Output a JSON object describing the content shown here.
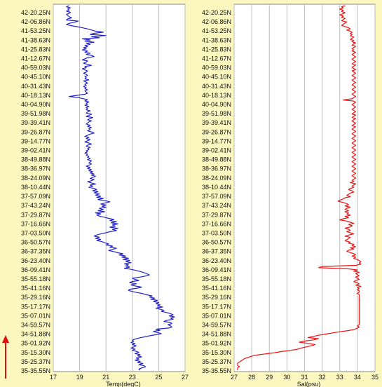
{
  "chart_data": [
    {
      "type": "line",
      "title": "",
      "xlabel": "Temp(degC)",
      "ylabel": "",
      "xlim": [
        17,
        27
      ],
      "xticks": [
        17,
        19,
        21,
        23,
        25,
        27
      ],
      "grid": true,
      "color": "#2222cc",
      "y_labels": [
        "42-20.25N",
        "42-06.86N",
        "41-53.25N",
        "41-38.63N",
        "41-25.83N",
        "41-12.67N",
        "40-59.03N",
        "40-45.10N",
        "40-31.43N",
        "40-18.13N",
        "40-04.90N",
        "39-51.98N",
        "39-39.41N",
        "39-26.87N",
        "39-14.77N",
        "39-02.41N",
        "38-49.88N",
        "38-36.97N",
        "38-24.09N",
        "38-10.44N",
        "37-57.09N",
        "37-43.24N",
        "37-29.87N",
        "37-16.66N",
        "37-03.50N",
        "36-50.57N",
        "36-37.35N",
        "36-23.40N",
        "36-09.41N",
        "35-55.18N",
        "35-41.16N",
        "35-29.16N",
        "35-17.17N",
        "35-07.01N",
        "34-59.57N",
        "34-51.88N",
        "35-01.92N",
        "35-15.30N",
        "35-25.37N",
        "35-35.55N"
      ],
      "series": [
        {
          "values": [
            18.2,
            18.0,
            18.3,
            18.1,
            18.2,
            18.0,
            18.3,
            18.2,
            18.0,
            18.1,
            18.2,
            18.4,
            18.1,
            18.0,
            18.9,
            18.6,
            18.2,
            18.0,
            18.3,
            18.8,
            19.2,
            19.6,
            19.9,
            20.2,
            20.8,
            20.1,
            19.8,
            21.0,
            19.9,
            20.5,
            19.2,
            19.8,
            19.4,
            20.1,
            19.5,
            19.8,
            19.4,
            19.6,
            19.3,
            19.5,
            19.2,
            19.6,
            19.4,
            19.8,
            19.5,
            19.9,
            20.1,
            19.6,
            19.4,
            19.2,
            19.6,
            19.5,
            19.3,
            19.6,
            19.9,
            19.4,
            19.5,
            19.2,
            19.4,
            19.6,
            19.5,
            19.3,
            19.5,
            19.6,
            19.4,
            19.5,
            19.4,
            19.7,
            19.3,
            19.5,
            19.6,
            19.4,
            19.5,
            19.3,
            19.5,
            19.4,
            19.6,
            19.4,
            19.5,
            19.6,
            19.4,
            18.8,
            18.2,
            18.9,
            19.3,
            19.6,
            19.4,
            19.7,
            19.5,
            19.6,
            19.4,
            19.7,
            19.5,
            19.6,
            19.5,
            19.8,
            19.6,
            19.5,
            19.9,
            19.7,
            19.5,
            20.0,
            19.8,
            19.6,
            19.9,
            19.7,
            19.6,
            19.5,
            19.8,
            19.6,
            19.9,
            19.7,
            19.8,
            19.6,
            19.9,
            20.1,
            19.8,
            19.6,
            19.4,
            19.7,
            19.5,
            19.8,
            19.6,
            19.4,
            19.7,
            19.9,
            19.6,
            19.5,
            19.8,
            19.6,
            19.7,
            19.5,
            19.6,
            19.4,
            19.6,
            19.5,
            19.7,
            19.6,
            19.8,
            19.6,
            19.9,
            19.8,
            19.7,
            19.9,
            19.7,
            19.5,
            19.8,
            19.6,
            19.9,
            19.7,
            20.0,
            19.8,
            20.1,
            19.9,
            20.2,
            20.0,
            19.8,
            20.1,
            19.9,
            19.6,
            19.9,
            20.2,
            19.8,
            20.0,
            19.7,
            20.1,
            20.3,
            20.0,
            20.4,
            20.1,
            20.5,
            20.2,
            20.6,
            20.3,
            20.8,
            20.4,
            20.9,
            21.3,
            21.0,
            20.6,
            21.0,
            20.7,
            21.0,
            20.5,
            20.8,
            20.4,
            20.9,
            20.2,
            20.6,
            20.3,
            20.5,
            20.9,
            21.2,
            21.6,
            21.3,
            21.8,
            21.4,
            21.9,
            21.5,
            21.7,
            21.3,
            21.9,
            21.5,
            21.8,
            21.3,
            21.0,
            20.6,
            20.3,
            20.1,
            20.5,
            20.2,
            20.6,
            20.3,
            20.7,
            20.9,
            21.2,
            21.0,
            21.5,
            21.3,
            21.8,
            21.5,
            21.2,
            21.6,
            21.9,
            22.3,
            22.0,
            22.5,
            22.2,
            22.7,
            22.3,
            22.8,
            22.5,
            22.9,
            22.4,
            22.7,
            22.5,
            22.8,
            22.4,
            22.9,
            23.3,
            23.6,
            23.9,
            24.1,
            24.3,
            24.0,
            23.6,
            23.0,
            23.2,
            23.5,
            23.0,
            22.8,
            23.3,
            22.9,
            23.2,
            23.7,
            23.4,
            22.8,
            22.7,
            23.0,
            23.4,
            23.8,
            24.1,
            24.5,
            24.3,
            24.7,
            24.4,
            24.9,
            24.6,
            25.0,
            24.8,
            25.1,
            24.9,
            25.3,
            24.8,
            25.1,
            25.4,
            25.2,
            25.6,
            25.9,
            26.1,
            25.8,
            26.2,
            25.9,
            26.1,
            25.6,
            25.4,
            25.9,
            26.0,
            25.7,
            25.9,
            26.0,
            25.8,
            24.8,
            25.1,
            24.6,
            24.9,
            25.2,
            24.8,
            24.3,
            23.9,
            23.5,
            23.2,
            23.0,
            23.1,
            22.9,
            23.2,
            23.0,
            23.3,
            23.1,
            22.9,
            23.2,
            23.0,
            23.3,
            23.5,
            23.2,
            23.6,
            23.4,
            23.7,
            23.3,
            23.5,
            23.2,
            23.6,
            23.4,
            23.8,
            23.5,
            23.9,
            24.0,
            23.7,
            23.5,
            23.6
          ]
        }
      ]
    },
    {
      "type": "line",
      "title": "",
      "xlabel": "Sal(psu)",
      "ylabel": "",
      "xlim": [
        27,
        35
      ],
      "xticks": [
        27,
        28,
        29,
        30,
        31,
        32,
        33,
        34,
        35
      ],
      "grid": true,
      "color": "#ee1111",
      "y_labels": [
        "42-20.25N",
        "42-06.86N",
        "41-53.25N",
        "41-38.63N",
        "41-25.83N",
        "41-12.67N",
        "40-59.03N",
        "40-45.10N",
        "40-31.43N",
        "40-18.13N",
        "40-04.90N",
        "39-51.98N",
        "39-39.41N",
        "39-26.87N",
        "39-14.77N",
        "39-02.41N",
        "38-49.88N",
        "38-36.97N",
        "38-24.09N",
        "38-10.44N",
        "37-57.09N",
        "37-43.24N",
        "37-29.87N",
        "37-16.66N",
        "37-03.50N",
        "36-50.57N",
        "36-37.35N",
        "36-23.40N",
        "36-09.41N",
        "35-55.18N",
        "35-41.16N",
        "35-29.16N",
        "35-17.17N",
        "35-07.01N",
        "34-59.57N",
        "34-51.88N",
        "35-01.92N",
        "35-15.30N",
        "35-25.37N",
        "35-35.55N"
      ],
      "series": [
        {
          "values": [
            33.3,
            33.1,
            33.2,
            33.0,
            33.2,
            33.1,
            33.3,
            33.2,
            33.0,
            33.2,
            33.1,
            33.3,
            33.2,
            33.1,
            33.4,
            33.3,
            33.2,
            33.1,
            33.3,
            33.5,
            33.6,
            33.4,
            33.6,
            33.7,
            33.6,
            33.7,
            33.6,
            33.8,
            33.7,
            33.6,
            33.8,
            33.7,
            33.9,
            33.8,
            33.7,
            33.9,
            33.8,
            33.7,
            33.8,
            33.7,
            33.9,
            33.8,
            33.7,
            33.8,
            33.9,
            33.8,
            33.7,
            33.8,
            33.9,
            33.8,
            33.7,
            33.9,
            33.8,
            33.7,
            33.8,
            33.9,
            33.7,
            33.8,
            33.9,
            33.8,
            33.7,
            33.8,
            33.9,
            33.8,
            33.7,
            33.8,
            33.9,
            33.8,
            33.7,
            33.8,
            33.9,
            33.8,
            33.7,
            33.8,
            33.9,
            33.8,
            33.7,
            33.8,
            33.9,
            33.8,
            33.7,
            33.2,
            33.8,
            33.9,
            33.8,
            33.7,
            33.8,
            33.9,
            33.8,
            33.7,
            33.8,
            33.9,
            33.8,
            33.7,
            33.9,
            33.8,
            33.7,
            33.9,
            33.8,
            33.7,
            33.8,
            33.9,
            33.8,
            33.7,
            33.9,
            33.8,
            33.7,
            33.8,
            33.9,
            33.8,
            33.7,
            33.8,
            33.9,
            33.8,
            33.7,
            33.8,
            33.9,
            33.8,
            33.7,
            33.8,
            33.9,
            33.8,
            33.7,
            33.8,
            33.9,
            33.8,
            33.7,
            33.8,
            33.9,
            33.8,
            33.7,
            33.8,
            33.9,
            33.8,
            33.7,
            33.8,
            33.9,
            33.8,
            33.7,
            33.8,
            33.9,
            33.8,
            33.7,
            33.8,
            33.9,
            33.8,
            33.7,
            33.8,
            33.9,
            33.8,
            33.7,
            33.8,
            33.6,
            33.9,
            33.8,
            33.7,
            33.8,
            33.6,
            33.5,
            33.7,
            33.8,
            33.6,
            33.5,
            33.4,
            33.6,
            33.3,
            33.2,
            33.0,
            32.9,
            33.2,
            33.4,
            33.5,
            33.3,
            33.6,
            33.4,
            33.3,
            33.5,
            33.3,
            33.5,
            33.4,
            33.6,
            33.3,
            33.5,
            33.2,
            33.0,
            33.4,
            33.6,
            33.8,
            33.5,
            33.7,
            33.6,
            33.3,
            33.5,
            33.6,
            33.4,
            33.6,
            33.8,
            33.5,
            33.3,
            33.6,
            33.5,
            33.4,
            33.3,
            33.6,
            33.5,
            33.8,
            33.7,
            33.9,
            33.6,
            33.8,
            33.5,
            33.4,
            33.6,
            33.8,
            33.9,
            33.7,
            33.9,
            33.8,
            34.0,
            34.1,
            34.2,
            34.1,
            34.2,
            33.9,
            32.0,
            31.8,
            33.5,
            34.0,
            33.8,
            34.1,
            33.9,
            34.0,
            34.1,
            33.9,
            34.0,
            34.1,
            33.9,
            33.8,
            34.0,
            34.1,
            33.9,
            34.2,
            34.0,
            34.1,
            34.0,
            34.1,
            34.1,
            34.0,
            34.1,
            34.1,
            34.1,
            34.1,
            34.1,
            34.1,
            34.1,
            34.1,
            34.1,
            34.1,
            34.1,
            34.1,
            34.1,
            34.1,
            34.1,
            34.1,
            34.1,
            34.1,
            34.1,
            34.1,
            34.1,
            34.1,
            34.1,
            34.1,
            34.1,
            34.1,
            34.1,
            34.0,
            34.1,
            34.0,
            33.8,
            33.5,
            33.0,
            32.6,
            32.2,
            31.8,
            31.5,
            31.2,
            31.8,
            31.5,
            31.0,
            30.7,
            31.2,
            31.6,
            31.4,
            31.1,
            30.8,
            30.6,
            30.2,
            29.7,
            29.3,
            28.8,
            28.3,
            28.0,
            27.8,
            27.6,
            27.5,
            27.4,
            27.3,
            27.2,
            27.2,
            27.2,
            27.3,
            27.2,
            27.2,
            27.2
          ]
        }
      ]
    }
  ]
}
